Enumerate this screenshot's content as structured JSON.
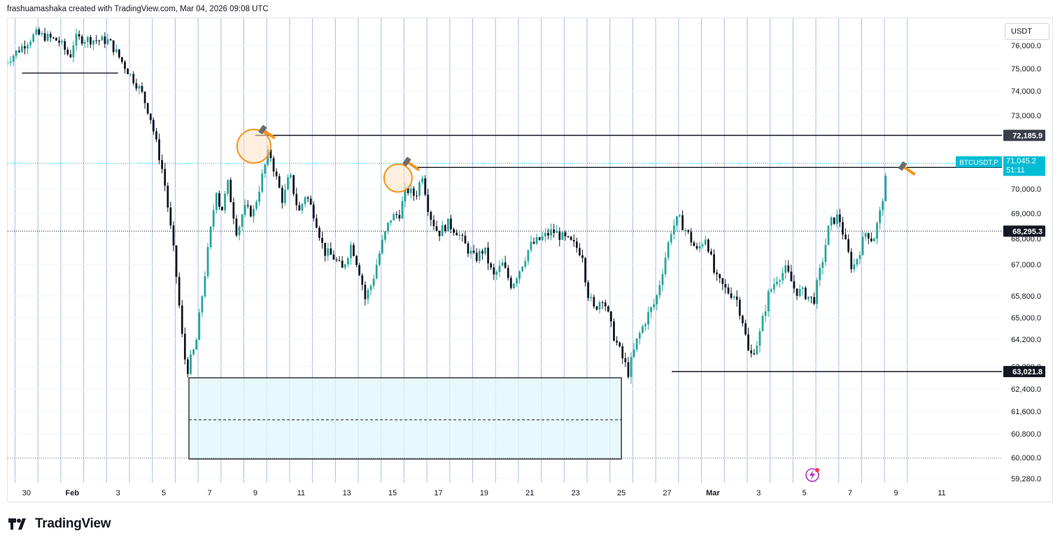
{
  "header": {
    "attribution": "frashuamashaka created with TradingView.com, Mar 04, 2026 09:08 UTC"
  },
  "toolbar": {
    "currency": "USDT"
  },
  "footer": {
    "brand": "TradingView"
  },
  "chart_data": {
    "type": "candlestick",
    "symbol": "BTCUSDT.P",
    "y_ticks": [
      76000.0,
      75000.0,
      74000.0,
      73000.0,
      70000.0,
      69000.0,
      68000.0,
      67000.0,
      65800.0,
      65000.0,
      64200.0,
      63200.0,
      62400.0,
      61600.0,
      60800.0,
      60000.0,
      59280.0
    ],
    "y_tick_labels": [
      "76,000.0",
      "75,000.0",
      "74,000.0",
      "73,000.0",
      "70,000.0",
      "69,000.0",
      "68,000.0",
      "67,000.0",
      "65,800.0",
      "65,000.0",
      "64,200.0",
      "63,200.0",
      "62,400.0",
      "61,600.0",
      "60,800.0",
      "60,000.0",
      "59,280.0"
    ],
    "x_tick_labels": [
      {
        "label": "30",
        "day": -3
      },
      {
        "label": "Feb",
        "day": -1
      },
      {
        "label": "3",
        "day": 1
      },
      {
        "label": "5",
        "day": 3
      },
      {
        "label": "7",
        "day": 5
      },
      {
        "label": "9",
        "day": 7
      },
      {
        "label": "11",
        "day": 9
      },
      {
        "label": "13",
        "day": 11
      },
      {
        "label": "15",
        "day": 13
      },
      {
        "label": "17",
        "day": 15
      },
      {
        "label": "19",
        "day": 17
      },
      {
        "label": "21",
        "day": 19
      },
      {
        "label": "23",
        "day": 21
      },
      {
        "label": "25",
        "day": 23
      },
      {
        "label": "27",
        "day": 25
      },
      {
        "label": "Mar",
        "day": 27
      },
      {
        "label": "3",
        "day": 29
      },
      {
        "label": "5",
        "day": 31
      },
      {
        "label": "7",
        "day": 33
      },
      {
        "label": "9",
        "day": 35
      },
      {
        "label": "11",
        "day": 37
      }
    ],
    "path_points": [
      [
        -4.0,
        75200
      ],
      [
        -2.6,
        76500
      ],
      [
        -1.6,
        76200
      ],
      [
        -1.1,
        75500
      ],
      [
        -0.9,
        76300
      ],
      [
        0.6,
        76200
      ],
      [
        1.3,
        75100
      ],
      [
        2.0,
        74000
      ],
      [
        2.4,
        73000
      ],
      [
        3.0,
        70500
      ],
      [
        3.5,
        67000
      ],
      [
        3.8,
        64300
      ],
      [
        4.0,
        63000
      ],
      [
        4.4,
        64000
      ],
      [
        4.7,
        66000
      ],
      [
        5.0,
        68000
      ],
      [
        5.3,
        70000
      ],
      [
        5.5,
        69000
      ],
      [
        5.8,
        70200
      ],
      [
        6.2,
        68200
      ],
      [
        6.5,
        69200
      ],
      [
        6.9,
        69000
      ],
      [
        7.3,
        70500
      ],
      [
        7.6,
        71600
      ],
      [
        7.9,
        70500
      ],
      [
        8.2,
        69500
      ],
      [
        8.5,
        70600
      ],
      [
        8.9,
        69000
      ],
      [
        9.2,
        69800
      ],
      [
        9.6,
        68900
      ],
      [
        10.0,
        67500
      ],
      [
        10.4,
        67300
      ],
      [
        10.8,
        66800
      ],
      [
        11.2,
        67800
      ],
      [
        11.6,
        66600
      ],
      [
        11.8,
        65700
      ],
      [
        12.1,
        66300
      ],
      [
        12.5,
        67700
      ],
      [
        12.9,
        68800
      ],
      [
        13.3,
        69000
      ],
      [
        13.6,
        70000
      ],
      [
        14.0,
        69700
      ],
      [
        14.3,
        70600
      ],
      [
        14.6,
        69000
      ],
      [
        15.0,
        68200
      ],
      [
        15.4,
        68600
      ],
      [
        15.8,
        68300
      ],
      [
        16.2,
        67700
      ],
      [
        16.6,
        67200
      ],
      [
        17.0,
        67600
      ],
      [
        17.4,
        66500
      ],
      [
        17.8,
        67000
      ],
      [
        18.2,
        66200
      ],
      [
        18.6,
        66900
      ],
      [
        19.0,
        67700
      ],
      [
        19.5,
        68000
      ],
      [
        20.0,
        68300
      ],
      [
        20.5,
        68000
      ],
      [
        21.0,
        67700
      ],
      [
        21.3,
        67400
      ],
      [
        21.5,
        66000
      ],
      [
        21.8,
        65300
      ],
      [
        22.2,
        65800
      ],
      [
        22.6,
        64500
      ],
      [
        23.0,
        63600
      ],
      [
        23.3,
        63000
      ],
      [
        23.7,
        64200
      ],
      [
        24.1,
        65000
      ],
      [
        24.5,
        65600
      ],
      [
        24.9,
        67200
      ],
      [
        25.2,
        68400
      ],
      [
        25.5,
        68800
      ],
      [
        25.9,
        68200
      ],
      [
        26.3,
        67500
      ],
      [
        26.7,
        68100
      ],
      [
        27.1,
        66500
      ],
      [
        27.6,
        66000
      ],
      [
        28.0,
        65800
      ],
      [
        28.3,
        64900
      ],
      [
        28.6,
        63500
      ],
      [
        29.0,
        64200
      ],
      [
        29.4,
        65800
      ],
      [
        29.8,
        66500
      ],
      [
        30.2,
        66800
      ],
      [
        30.6,
        66000
      ],
      [
        31.0,
        65900
      ],
      [
        31.4,
        65600
      ],
      [
        31.8,
        67200
      ],
      [
        32.1,
        68600
      ],
      [
        32.5,
        68900
      ],
      [
        32.8,
        67800
      ],
      [
        33.1,
        66800
      ],
      [
        33.4,
        67500
      ],
      [
        33.7,
        68300
      ],
      [
        34.0,
        67900
      ],
      [
        34.3,
        69000
      ],
      [
        34.6,
        70600
      ]
    ],
    "resistance_levels": [
      {
        "price": 72185.9,
        "label": "72,185.9",
        "from_day": 7.0
      },
      {
        "price": 70876.8,
        "label": 70876.8,
        "display": "70,876.8",
        "from_day": 14.0
      }
    ],
    "support_levels": [
      {
        "price": 63021.8,
        "label": "63,021.8",
        "from_day": 25.2
      },
      {
        "price": 74800,
        "label": "",
        "from_day": -3.2,
        "to_day": 1.0
      }
    ],
    "last_price": {
      "price": 71045.2,
      "label": "71,045.2",
      "countdown": "51:11",
      "symbol": "BTCUSDT.P"
    },
    "ref_price": {
      "price": 68295.3,
      "label": "68,295.3"
    },
    "demand_zone": {
      "top": 62800,
      "bottom": 59950,
      "mid": 61300,
      "from_day": 4.1,
      "to_day": 23.0
    },
    "markers": [
      {
        "day": 7.0,
        "price": 71800,
        "icon": "hammer"
      },
      {
        "day": 13.3,
        "price": 70500,
        "icon": "hammer"
      },
      {
        "day": 35.4,
        "price": 70600,
        "icon": "hammer"
      }
    ],
    "colors": {
      "up": "#26a69a",
      "down": "#131722",
      "zone_fill": "#e0f7fa",
      "zone_edge": "#131722",
      "vline": "#a8bde8",
      "last_price": "#00bcd4",
      "marker": "#f7931a"
    }
  }
}
